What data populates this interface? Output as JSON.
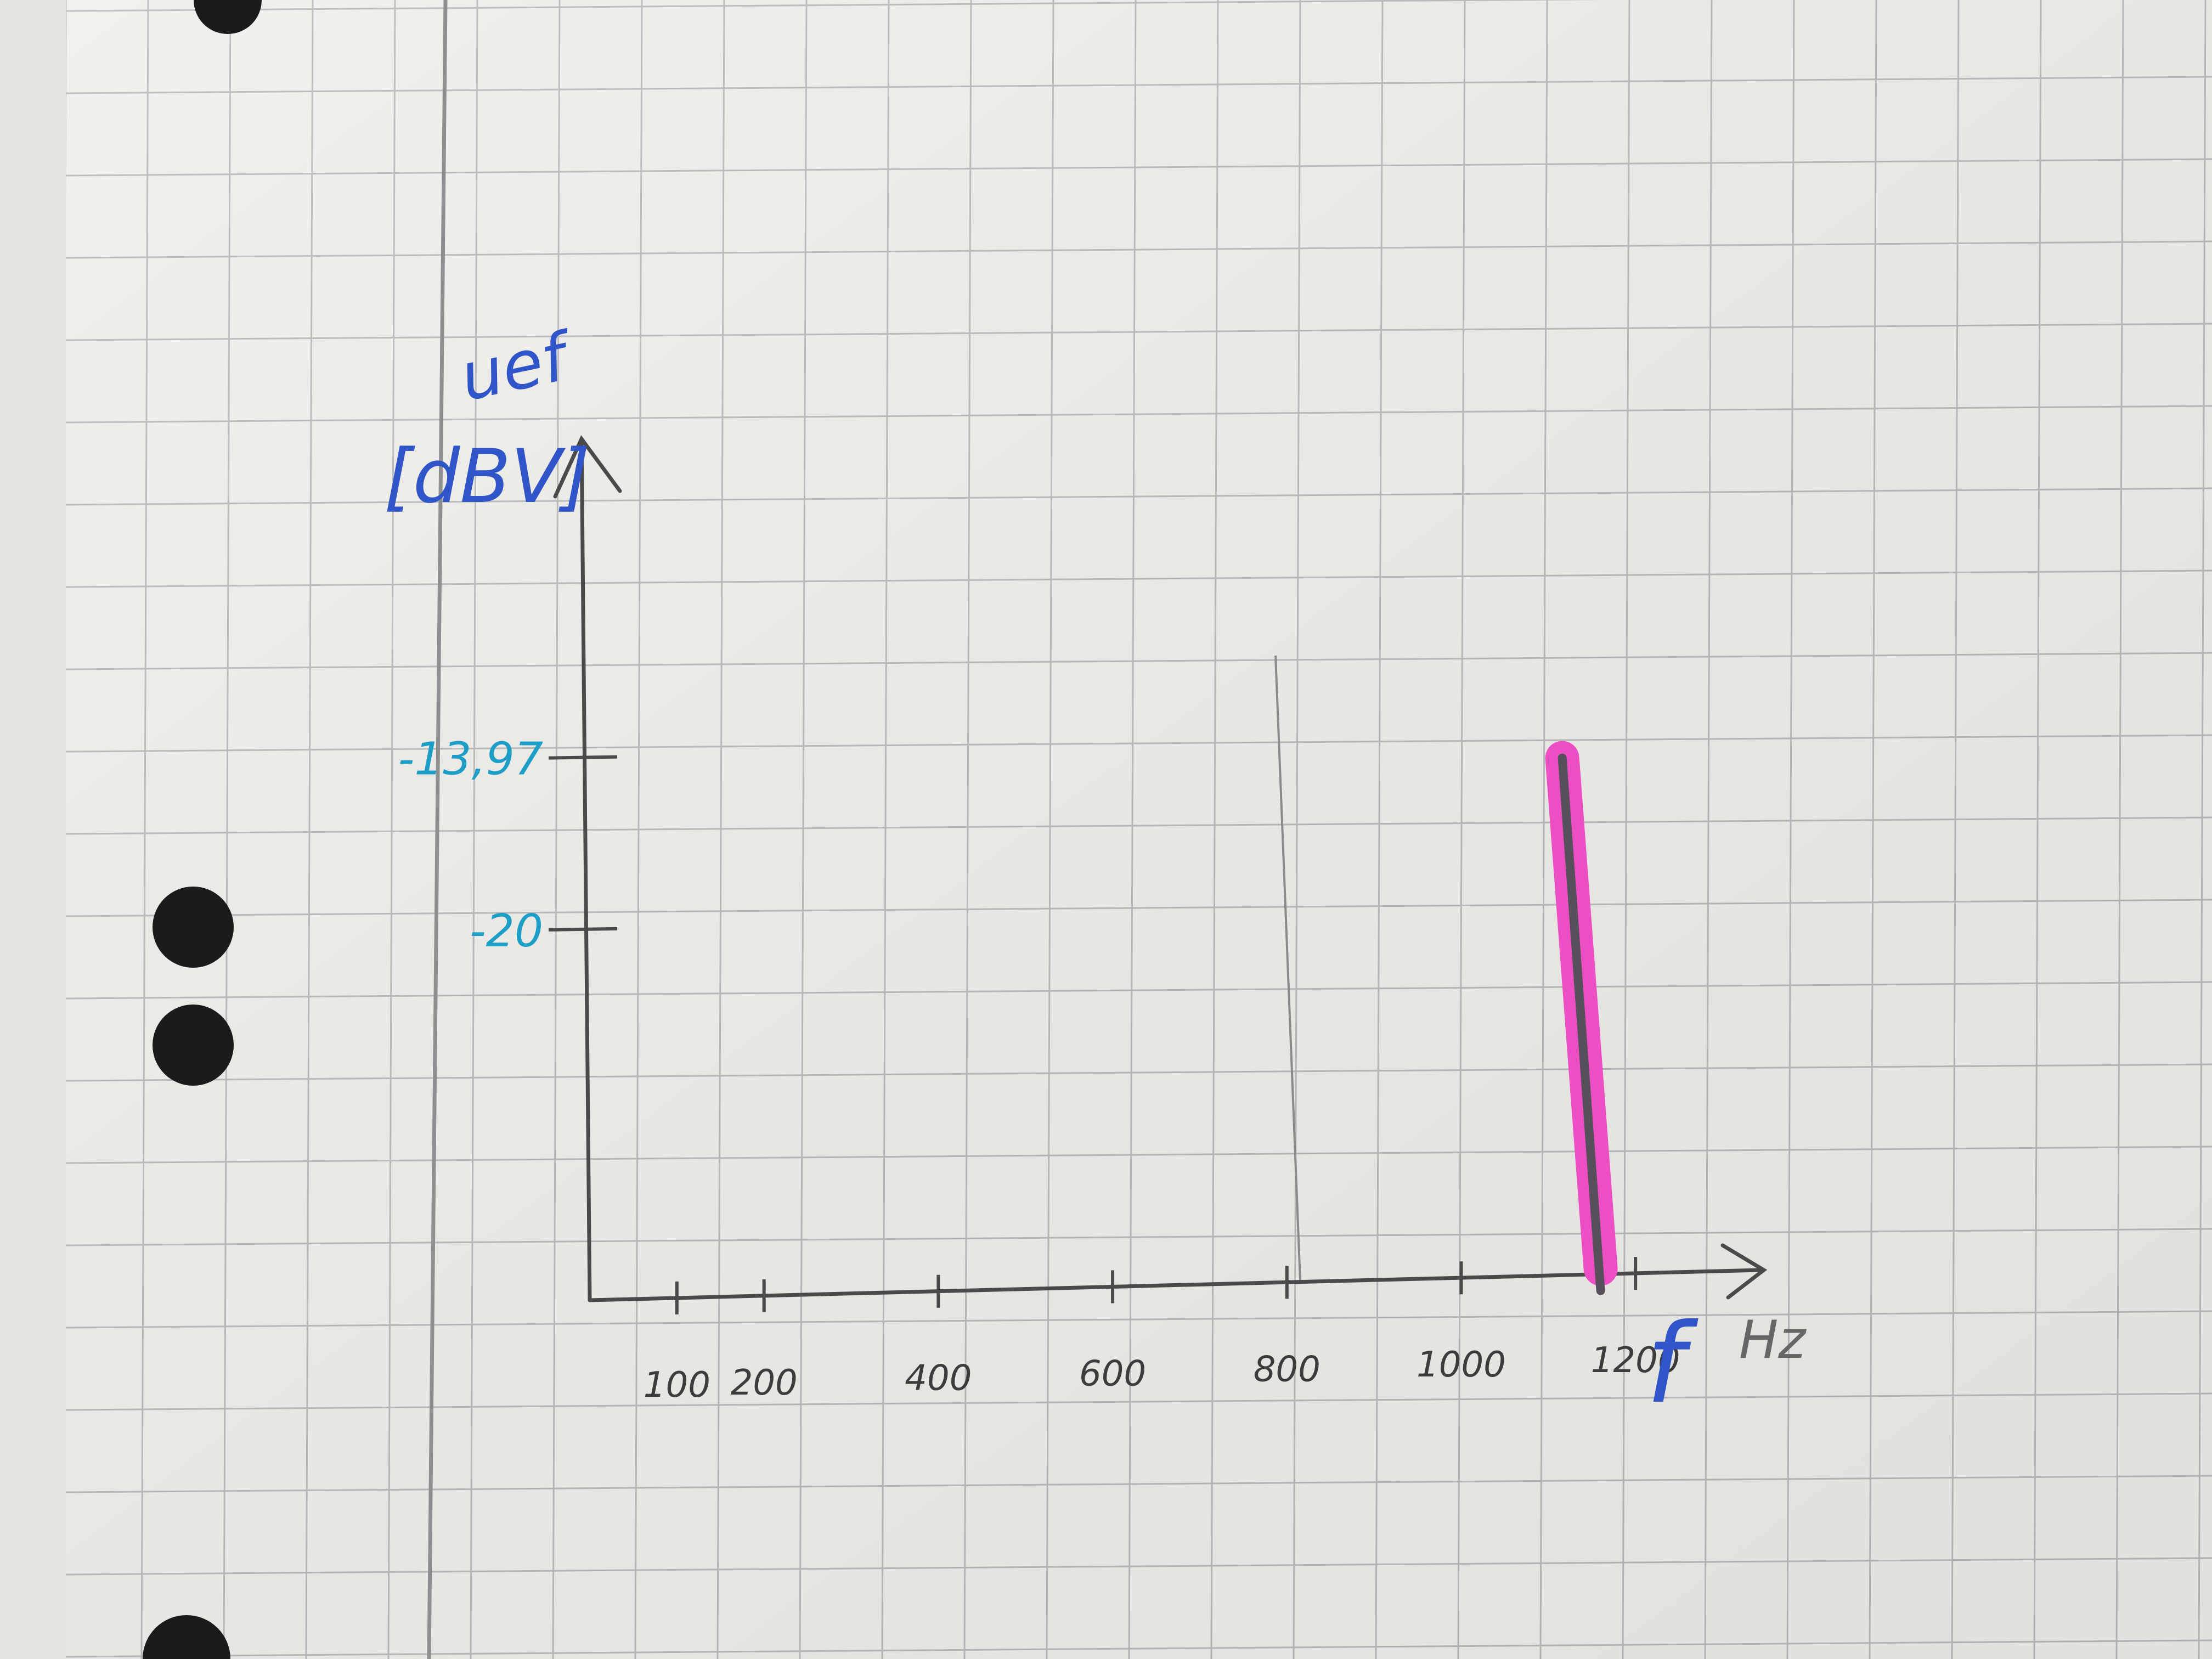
{
  "colors": {
    "paper": "#f1f0ec",
    "grid": "#b9bcbc",
    "margin_line": "#8d8f90",
    "axis_ink": "#4a4a4a",
    "blue_ink": "#2f55c9",
    "cyan_ink": "#1d9ec6",
    "bar_highlight": "#ec4fc3",
    "bar_pencil": "#555059",
    "punch_hole": "#1b1b1d"
  },
  "chart_data": {
    "type": "bar",
    "title": "",
    "ylabel": {
      "symbol": "uef",
      "unit": "[dBV]"
    },
    "xlabel": {
      "symbol": "f",
      "unit": "Hz"
    },
    "x_ticks": [
      "100",
      "200",
      "400",
      "600",
      "800",
      "1000",
      "1200"
    ],
    "y_ticks": [
      "-13,97",
      "-20"
    ],
    "xlim": [
      0,
      1300
    ],
    "ylim": [
      -33,
      -2
    ],
    "grid": true,
    "series": [
      {
        "x": [
          1160
        ],
        "values": [
          -13.97
        ]
      }
    ]
  }
}
